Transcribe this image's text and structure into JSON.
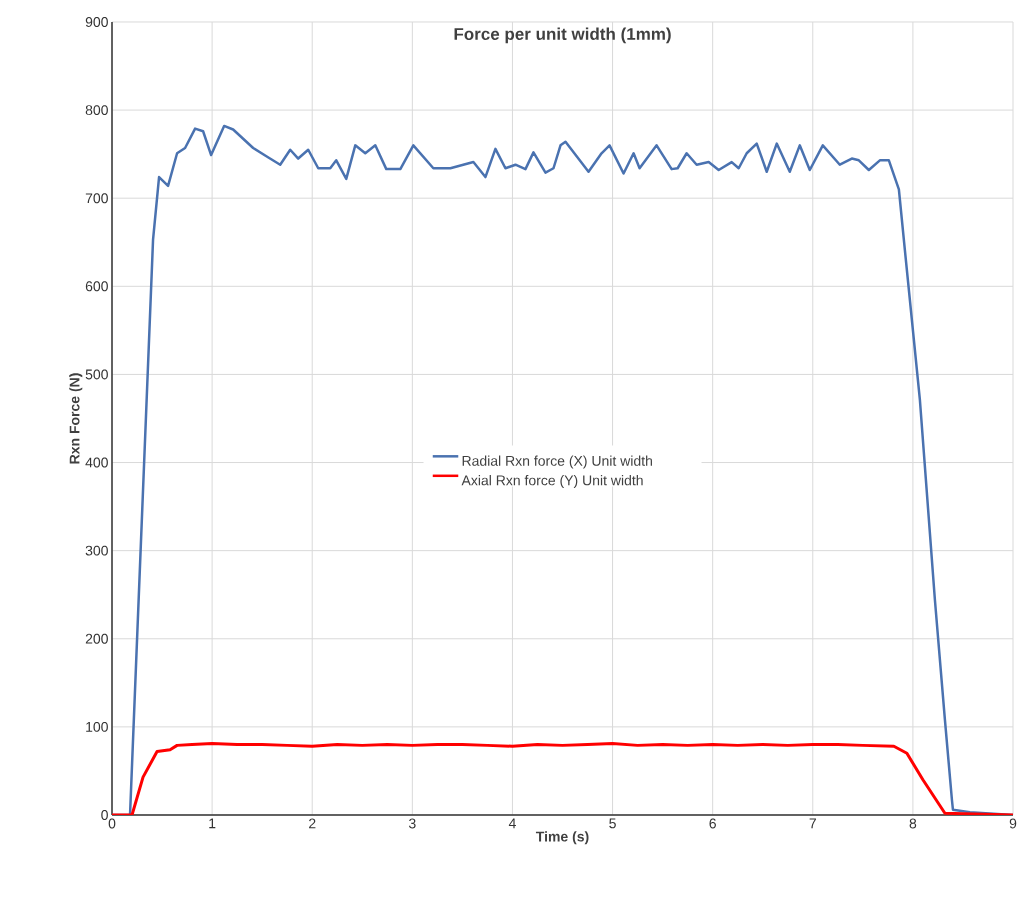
{
  "chart_data": {
    "type": "line",
    "title": "Force per unit width (1mm)",
    "xlabel": "Time (s)",
    "ylabel": "Rxn Force (N)",
    "xlim": [
      0,
      9
    ],
    "ylim": [
      0,
      900
    ],
    "xticks": [
      0,
      1,
      2,
      3,
      4,
      5,
      6,
      7,
      8,
      9
    ],
    "yticks": [
      0,
      100,
      200,
      300,
      400,
      500,
      600,
      700,
      800,
      900
    ],
    "grid": true,
    "legend": "center",
    "marker": "none",
    "line_style": "solid",
    "series": [
      {
        "name": "Radial Rxn force (X) Unit width",
        "color": "#4a72b0",
        "x": [
          0,
          0.18,
          0.41,
          0.47,
          0.56,
          0.65,
          0.73,
          0.83,
          0.91,
          0.99,
          1.12,
          1.21,
          1.41,
          1.55,
          1.68,
          1.78,
          1.86,
          1.96,
          2.06,
          2.18,
          2.24,
          2.34,
          2.43,
          2.53,
          2.63,
          2.74,
          2.88,
          3.01,
          3.21,
          3.38,
          3.61,
          3.73,
          3.83,
          3.93,
          4.03,
          4.13,
          4.21,
          4.33,
          4.41,
          4.48,
          4.53,
          4.76,
          4.89,
          4.97,
          5.11,
          5.21,
          5.27,
          5.44,
          5.59,
          5.65,
          5.74,
          5.84,
          5.96,
          6.06,
          6.19,
          6.26,
          6.34,
          6.44,
          6.54,
          6.64,
          6.77,
          6.87,
          6.97,
          7.1,
          7.27,
          7.39,
          7.46,
          7.56,
          7.67,
          7.76,
          7.86,
          7.92,
          8.07,
          8.22,
          8.32,
          8.39,
          8.4,
          8.57,
          9
        ],
        "values": [
          0,
          0,
          653,
          724,
          714,
          751,
          757,
          779,
          776,
          749,
          782,
          778,
          757,
          747,
          738,
          755,
          745,
          755,
          734,
          734,
          743,
          722,
          760,
          751,
          760,
          733,
          733,
          760,
          734,
          734,
          741,
          724,
          756,
          734,
          738,
          733,
          752,
          729,
          734,
          760,
          764,
          730,
          751,
          760,
          728,
          751,
          734,
          760,
          733,
          734,
          751,
          738,
          741,
          732,
          741,
          734,
          751,
          762,
          730,
          762,
          730,
          760,
          732,
          760,
          738,
          745,
          743,
          732,
          743,
          743,
          710,
          641,
          471,
          244,
          108,
          17,
          6,
          3,
          0
        ]
      },
      {
        "name": "Axial Rxn force (Y) Unit width",
        "color": "#ff0000",
        "x": [
          0,
          0.2,
          0.31,
          0.45,
          0.58,
          0.65,
          0.8,
          1,
          1.25,
          1.5,
          1.75,
          2,
          2.25,
          2.5,
          2.75,
          3,
          3.25,
          3.5,
          3.75,
          4,
          4.25,
          4.5,
          4.75,
          5,
          5.25,
          5.5,
          5.75,
          6,
          6.25,
          6.5,
          6.75,
          7,
          7.25,
          7.5,
          7.81,
          7.94,
          8.1,
          8.32,
          9
        ],
        "values": [
          0,
          0,
          43,
          72,
          74,
          79,
          80,
          81,
          80,
          80,
          79,
          78,
          80,
          79,
          80,
          79,
          80,
          80,
          79,
          78,
          80,
          79,
          80,
          81,
          79,
          80,
          79,
          80,
          79,
          80,
          79,
          80,
          80,
          79,
          78,
          70,
          40,
          2,
          0
        ]
      }
    ]
  }
}
